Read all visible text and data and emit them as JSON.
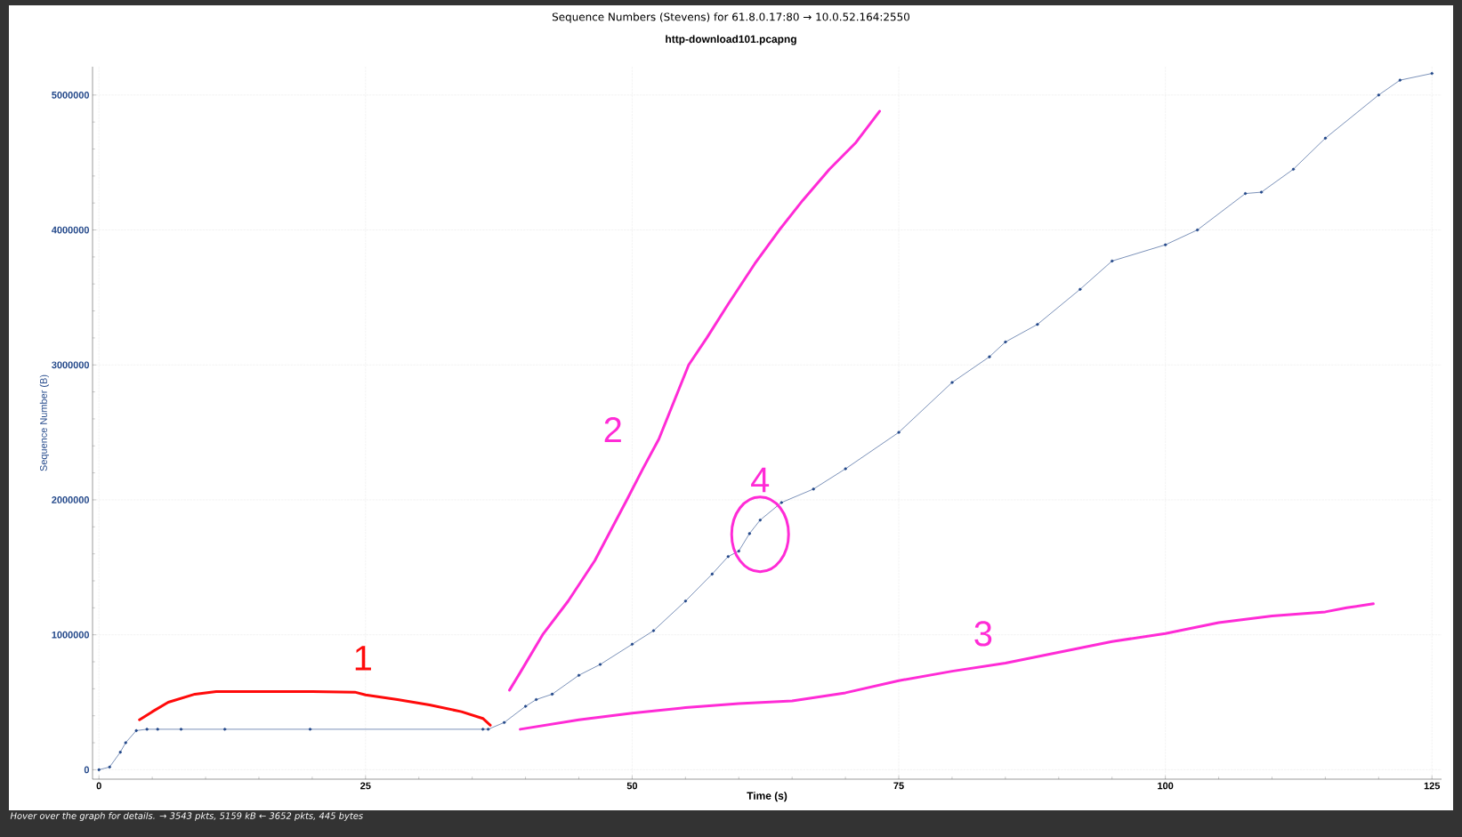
{
  "chart_data": {
    "type": "line",
    "title": "Sequence Numbers (Stevens) for 61.8.0.17:80 → 10.0.52.164:2550",
    "subtitle": "http-download101.pcapng",
    "xlabel": "Time (s)",
    "ylabel": "Sequence Number (B)",
    "xlim": [
      -0.6,
      125.9
    ],
    "ylim": [
      -70000,
      5210000
    ],
    "xticks": [
      0,
      25,
      50,
      75,
      100,
      125
    ],
    "yticks": [
      0,
      1000000,
      2000000,
      3000000,
      4000000,
      5000000
    ],
    "grid": true,
    "legend": false,
    "annotations": [
      {
        "text": "4",
        "x": 62,
        "y": 1850000
      },
      "Hover over the graph for details. → 3543 pkts, 5159 kB ← 3652 pkts, 445 bytes"
    ],
    "series": [
      {
        "color": "#23488a",
        "marker": "circle",
        "x": [
          0,
          1,
          2,
          2.5,
          3.5,
          4.5,
          5.5,
          7.7,
          11.8,
          19.8,
          36,
          36.5,
          38,
          40,
          41,
          42.5,
          45,
          47,
          50,
          52,
          55,
          57.5,
          59,
          60,
          61,
          62,
          64,
          67,
          70,
          75,
          80,
          83.5,
          85,
          88,
          92,
          95,
          100,
          103,
          107.5,
          109,
          112,
          115,
          120,
          122,
          125
        ],
        "values": [
          0,
          20000,
          130000,
          200000,
          290000,
          300000,
          300000,
          300000,
          300000,
          300000,
          300000,
          300000,
          350000,
          470000,
          520000,
          560000,
          700000,
          780000,
          930000,
          1030000,
          1250000,
          1450000,
          1580000,
          1620000,
          1750000,
          1850000,
          1980000,
          2080000,
          2230000,
          2500000,
          2870000,
          3060000,
          3170000,
          3300000,
          3560000,
          3770000,
          3890000,
          4000000,
          4270000,
          4280000,
          4450000,
          4680000,
          5000000,
          5110000,
          5160000
        ]
      },
      {
        "name": "1",
        "color": "#ff0a0a",
        "x": [
          3.8,
          5,
          6.5,
          9,
          11,
          20,
          24,
          25,
          28,
          31,
          34,
          36,
          36.7
        ],
        "values": [
          370000,
          430000,
          500000,
          560000,
          580000,
          580000,
          575000,
          555000,
          520000,
          480000,
          430000,
          380000,
          330000
        ]
      },
      {
        "name": "2",
        "color": "#ff2bd6",
        "x": [
          38.5,
          39.5,
          41.6,
          44,
          46.5,
          48.5,
          49.5,
          51,
          52.5,
          55.3,
          57,
          59,
          61.5,
          63.8,
          66,
          68.5,
          71,
          73.2
        ],
        "values": [
          590000,
          720000,
          1000000,
          1250000,
          1550000,
          1850000,
          2000000,
          2230000,
          2450000,
          3000000,
          3200000,
          3450000,
          3750000,
          4000000,
          4220000,
          4450000,
          4650000,
          4880000
        ]
      },
      {
        "name": "3",
        "color": "#ff2bd6",
        "x": [
          39.5,
          45,
          50,
          55,
          60,
          65,
          70,
          75,
          80,
          85,
          90,
          95,
          100,
          105,
          110,
          115,
          117,
          119.5
        ],
        "values": [
          300000,
          370000,
          420000,
          460000,
          490000,
          510000,
          570000,
          660000,
          730000,
          790000,
          870000,
          950000,
          1010000,
          1090000,
          1140000,
          1170000,
          1200000,
          1230000
        ]
      }
    ]
  }
}
